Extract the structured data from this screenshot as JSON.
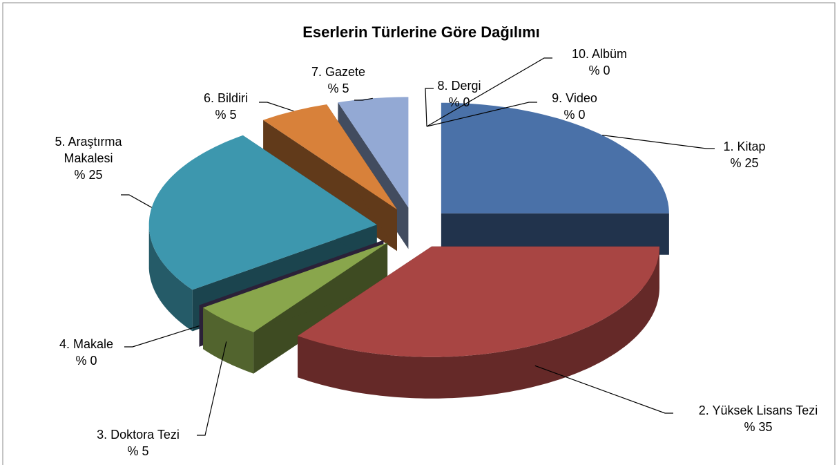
{
  "chart_data": {
    "type": "pie3d",
    "title": "Eserlerin Türlerine Göre Dağılımı",
    "categories": [
      "1. Kitap",
      "2. Yüksek Lisans Tezi",
      "3. Doktora Tezi",
      "4. Makale",
      "5. Araştırma Makalesi",
      "6. Bildiri",
      "7. Gazete",
      "8. Dergi",
      "9. Video",
      "10. Albüm"
    ],
    "values": [
      25,
      35,
      5,
      0,
      25,
      5,
      5,
      0,
      0,
      0
    ],
    "value_labels": [
      "% 25",
      "% 35",
      "% 5",
      "% 0",
      "% 25",
      "% 5",
      "% 5",
      "% 0",
      "% 0",
      "% 0"
    ],
    "colors": [
      "#4a71a8",
      "#a84543",
      "#89a64c",
      "#5f4a7c",
      "#3d97ae",
      "#d8813a",
      "#93a9d4",
      "#4a71a8",
      "#a84543",
      "#89a64c"
    ]
  }
}
